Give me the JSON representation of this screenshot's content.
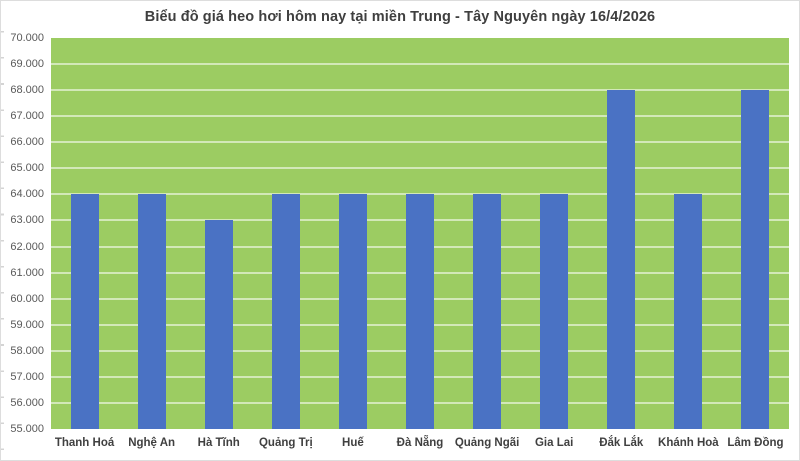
{
  "chart_data": {
    "type": "bar",
    "title": "Biểu đồ giá heo hơi hôm nay tại miền Trung - Tây Nguyên ngày 16/4/2026",
    "categories": [
      "Thanh Hoá",
      "Nghệ An",
      "Hà Tĩnh",
      "Quảng Trị",
      "Huế",
      "Đà Nẵng",
      "Quảng Ngãi",
      "Gia Lai",
      "Đắk Lắk",
      "Khánh Hoà",
      "Lâm Đồng"
    ],
    "values": [
      64000,
      64000,
      63000,
      64000,
      64000,
      64000,
      64000,
      64000,
      68000,
      64000,
      68000
    ],
    "xlabel": "",
    "ylabel": "",
    "ylim": [
      55000,
      70000
    ],
    "ytick_step": 1000,
    "ytick_labels": [
      "55.000",
      "56.000",
      "57.000",
      "58.000",
      "59.000",
      "60.000",
      "61.000",
      "62.000",
      "63.000",
      "64.000",
      "65.000",
      "66.000",
      "67.000",
      "68.000",
      "69.000",
      "70.000"
    ],
    "grid": true,
    "legend": "none",
    "colors": {
      "bar": "#4a72c4",
      "plot_background": "#9ccc62",
      "gridline": "rgba(255,255,255,0.55)",
      "title_text": "#3f3f3f",
      "ytick_text": "#595959",
      "category_text": "#404040",
      "page_background": "#ffffff",
      "frame_border": "#dddddd"
    }
  }
}
